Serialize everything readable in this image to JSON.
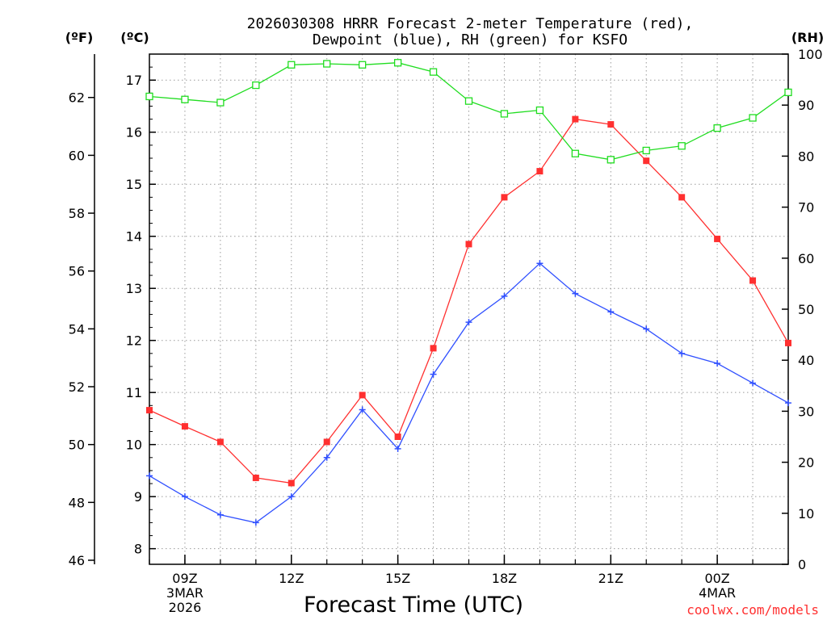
{
  "chart_data": {
    "type": "line",
    "title_line1": "2026030308 HRRR Forecast 2-meter Temperature (red),",
    "title_line2": "Dewpoint (blue), RH (green) for KSFO",
    "left_unit_f": "(ºF)",
    "left_unit_c": "(ºC)",
    "right_unit": "(RH)",
    "xlabel": "Forecast Time (UTC)",
    "credit": "coolwx.com/models",
    "x_hours": [
      8,
      9,
      10,
      11,
      12,
      13,
      14,
      15,
      16,
      17,
      18,
      19,
      20,
      21,
      22,
      23,
      24,
      25,
      26
    ],
    "xlim": [
      8,
      26
    ],
    "ylim_c": [
      7.7,
      17.5
    ],
    "ylim_rh": [
      0,
      100
    ],
    "x_ticks": [
      {
        "hour": 9,
        "lines": [
          "09Z",
          "3MAR",
          "2026"
        ]
      },
      {
        "hour": 12,
        "lines": [
          "12Z"
        ]
      },
      {
        "hour": 15,
        "lines": [
          "15Z"
        ]
      },
      {
        "hour": 18,
        "lines": [
          "18Z"
        ]
      },
      {
        "hour": 21,
        "lines": [
          "21Z"
        ]
      },
      {
        "hour": 24,
        "lines": [
          "00Z",
          "4MAR"
        ]
      }
    ],
    "yticks_c": [
      "8",
      "9",
      "10",
      "11",
      "12",
      "13",
      "14",
      "15",
      "16",
      "17"
    ],
    "yticks_f": [
      "46",
      "48",
      "50",
      "52",
      "54",
      "56",
      "58",
      "60",
      "62"
    ],
    "yticks_rh": [
      "0",
      "10",
      "20",
      "30",
      "40",
      "50",
      "60",
      "70",
      "80",
      "90",
      "100"
    ],
    "series": [
      {
        "name": "Temperature",
        "color": "#ff3030",
        "marker": "filled-square",
        "units": "C",
        "values": [
          10.66,
          10.35,
          10.05,
          9.36,
          9.26,
          10.05,
          10.95,
          10.15,
          11.85,
          13.85,
          14.75,
          15.25,
          16.25,
          16.15,
          15.45,
          14.75,
          13.95,
          13.15,
          11.95
        ]
      },
      {
        "name": "Dewpoint",
        "color": "#3050ff",
        "marker": "plus",
        "units": "C",
        "values": [
          9.4,
          9.0,
          8.65,
          8.5,
          9.0,
          9.75,
          10.67,
          9.92,
          11.35,
          12.35,
          12.85,
          13.48,
          12.9,
          12.55,
          12.22,
          11.75,
          11.56,
          11.18,
          10.8
        ]
      },
      {
        "name": "RH",
        "color": "#20dd20",
        "marker": "open-square",
        "units": "%",
        "values": [
          91.7,
          91.1,
          90.5,
          93.9,
          97.9,
          98.1,
          97.9,
          98.3,
          96.5,
          90.8,
          88.3,
          89.0,
          80.5,
          79.3,
          81.1,
          82.0,
          85.5,
          87.5,
          92.5
        ]
      }
    ]
  }
}
